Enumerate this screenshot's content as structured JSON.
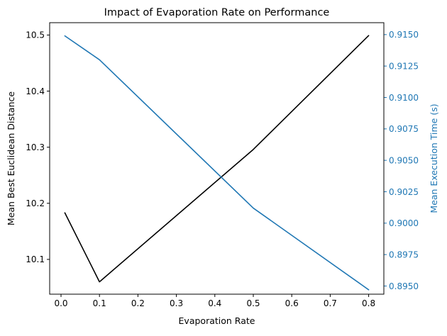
{
  "chart_data": {
    "type": "line",
    "title": "Impact of Evaporation Rate on Performance",
    "xlabel": "Evaporation Rate",
    "ylabel_left": "Mean Best Euclidean Distance",
    "ylabel_right": "Mean Execution Time (s)",
    "x": [
      0.01,
      0.1,
      0.5,
      0.8
    ],
    "xlim": [
      -0.0295,
      0.8395
    ],
    "ylim_left": [
      10.038,
      10.522
    ],
    "ylim_right": [
      0.89435,
      0.91595
    ],
    "x_ticks": [
      "0.0",
      "0.1",
      "0.2",
      "0.3",
      "0.4",
      "0.5",
      "0.6",
      "0.7",
      "0.8"
    ],
    "x_tick_values": [
      0,
      0.1,
      0.2,
      0.3,
      0.4,
      0.5,
      0.6,
      0.7,
      0.8
    ],
    "y_left_ticks": [
      "10.1",
      "10.2",
      "10.3",
      "10.4",
      "10.5"
    ],
    "y_left_tick_values": [
      10.1,
      10.2,
      10.3,
      10.4,
      10.5
    ],
    "y_right_ticks": [
      "0.8950",
      "0.8975",
      "0.9000",
      "0.9025",
      "0.9050",
      "0.9075",
      "0.9100",
      "0.9125",
      "0.9150"
    ],
    "y_right_tick_values": [
      0.895,
      0.8975,
      0.9,
      0.9025,
      0.905,
      0.9075,
      0.91,
      0.9125,
      0.915
    ],
    "series": [
      {
        "axis": "left",
        "color": "#000000",
        "values": [
          10.183,
          10.06,
          10.296,
          10.499
        ]
      },
      {
        "axis": "right",
        "color": "#1f77b4",
        "values": [
          0.9149,
          0.913,
          0.9012,
          0.8947
        ]
      }
    ],
    "grid": false,
    "legend": "none",
    "right_axis_color": "#1f77b4"
  }
}
